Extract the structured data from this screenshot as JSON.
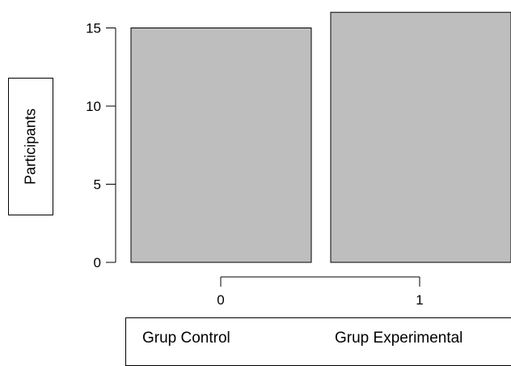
{
  "chart_data": {
    "type": "bar",
    "categories": [
      "0",
      "1"
    ],
    "values": [
      15,
      16
    ],
    "ylabel": "Participants",
    "ylim": [
      0,
      16
    ],
    "yticks": [
      0,
      5,
      10,
      15
    ],
    "bar_color": "#bebebe",
    "grid": false,
    "legend_position": "bottom",
    "group_labels": [
      "Grup Control",
      "Grup Experimental"
    ]
  }
}
